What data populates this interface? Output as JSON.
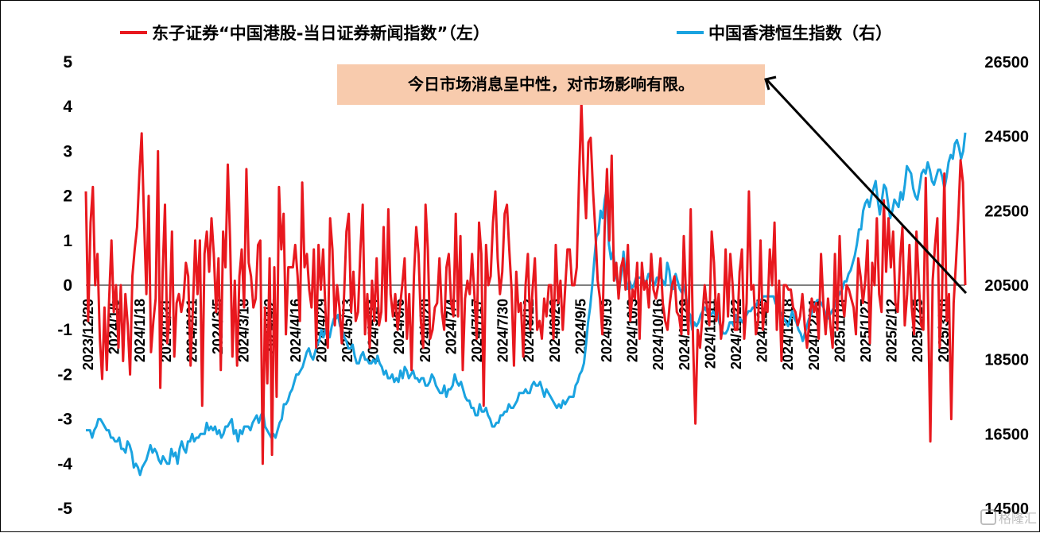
{
  "chart_data": {
    "type": "line",
    "series": [
      {
        "name": "东子证券“中国港股-当日证券新闻指数”（左）",
        "axis": "left",
        "color": "#e8181e",
        "values": [
          2.1,
          -0.8,
          1.4,
          2.2,
          0.0,
          0.7,
          -1.2,
          -2.1,
          -0.5,
          -1.9,
          -0.3,
          1.0,
          -0.6,
          0.0,
          -1.4,
          0.0,
          -1.7,
          -0.2,
          -0.9,
          -2.0,
          0.2,
          0.8,
          1.3,
          2.5,
          3.4,
          1.5,
          -0.2,
          2.0,
          -1.5,
          -0.8,
          -0.3,
          3.0,
          -2.3,
          0.3,
          1.8,
          -1.3,
          -0.7,
          1.2,
          -1.6,
          -0.4,
          -0.2,
          -0.6,
          -0.3,
          0.5,
          0.2,
          -1.8,
          -0.5,
          1.0,
          -0.2,
          1.0,
          -2.7,
          0.7,
          1.2,
          0.3,
          1.5,
          0.7,
          -0.6,
          0.6,
          -1.9,
          1.2,
          0.4,
          2.7,
          1.0,
          -1.6,
          0.1,
          -1.8,
          0.2,
          0.8,
          -0.5,
          2.6,
          0.5,
          0.2,
          -0.5,
          -0.3,
          0.9,
          1.0,
          -4.0,
          -0.5,
          -2.2,
          0.6,
          -3.8,
          0.4,
          -2.5,
          2.2,
          0.8,
          1.6,
          -1.1,
          0.4,
          0.4,
          0.4,
          0.9,
          0.2,
          -0.8,
          2.3,
          0.4,
          0.7,
          -0.1,
          -0.5,
          0.8,
          -1.4,
          0.9,
          -0.1,
          0.8,
          -0.6,
          -1.4,
          1.5,
          0.8,
          -0.9,
          0.0,
          -0.5,
          -1.3,
          -0.2,
          1.2,
          1.6,
          -0.6,
          0.3,
          -0.8,
          -0.6,
          0.8,
          1.8,
          -1.1,
          -0.2,
          -1.4,
          0.1,
          -0.8,
          0.6,
          -0.9,
          -0.6,
          1.3,
          -0.8,
          1.7,
          -0.2,
          -0.7,
          -0.2,
          -1.0,
          -0.5,
          0.0,
          0.6,
          -1.2,
          -0.2,
          -1.9,
          0.2,
          1.3,
          0.7,
          -0.8,
          -1.4,
          1.8,
          0.8,
          -1.2,
          -1.0,
          -0.5,
          -0.4,
          0.6,
          -0.6,
          -1.0,
          0.4,
          0.7,
          -0.4,
          -0.7,
          1.6,
          -0.7,
          1.1,
          -1.9,
          -0.3,
          0.1,
          -0.2,
          0.7,
          -0.2,
          -1.2,
          1.4,
          0.7,
          -2.7,
          0.9,
          0.0,
          0.2,
          1.4,
          2.1,
          0.6,
          -0.2,
          0.3,
          1.6,
          1.8,
          0.8,
          -0.1,
          -1.8,
          0.3,
          -0.6,
          -0.4,
          -1.6,
          0.0,
          0.7,
          -1.0,
          -0.1,
          0.6,
          -1.0,
          -0.8,
          -1.2,
          -0.3,
          -0.7,
          0.0,
          0.0,
          -1.2,
          0.9,
          -0.4,
          0.1,
          -1.0,
          -0.1,
          0.8,
          0.8,
          0.0,
          0.0,
          0.4,
          2.4,
          4.1,
          2.5,
          1.5,
          3.2,
          3.3,
          2.1,
          1.2,
          0.1,
          -0.3,
          -1.1,
          1.3,
          2.6,
          1.0,
          2.9,
          0.1,
          0.5,
          -0.3,
          0.4,
          0.6,
          -0.1,
          0.9,
          -0.8,
          -0.1,
          -0.3,
          0.5,
          -1.2,
          0.5,
          -0.1,
          0.1,
          -0.5,
          0.7,
          -0.1,
          -0.3,
          0.0,
          0.6,
          -0.4,
          -0.8,
          -1.0,
          -0.4,
          0.0,
          0.2,
          -0.6,
          -0.7,
          -1.1,
          1.1,
          -0.3,
          -1.1,
          1.7,
          -1.3,
          -3.1,
          -1.0,
          -1.4,
          -0.7,
          0.0,
          -0.5,
          -0.9,
          1.2,
          0.5,
          -0.8,
          -0.2,
          -1.2,
          -0.8,
          0.8,
          -0.7,
          0.7,
          0.0,
          -1.0,
          -1.0,
          0.3,
          0.8,
          -1.2,
          -0.4,
          2.1,
          -0.1,
          0.0,
          -1.1,
          -0.8,
          1.0,
          -1.0,
          -0.4,
          -0.6,
          0.8,
          0.0,
          1.4,
          -1.0,
          0.1,
          -1.7,
          0.0,
          0.0,
          -0.1,
          -0.1,
          -0.5,
          -0.6,
          -0.9,
          -0.7,
          -0.2,
          -0.9,
          -1.4,
          -0.8,
          -0.3,
          -0.6,
          -0.4,
          -1.2,
          0.7,
          -0.4,
          -1.1,
          -0.3,
          -0.9,
          -1.4,
          0.7,
          -1.0,
          1.1,
          -0.3,
          -0.7,
          0.0,
          -0.1,
          -0.3,
          -0.5,
          -1.1,
          0.6,
          0.2,
          -0.4,
          0.1,
          1.0,
          -1.3,
          0.5,
          0.0,
          1.5,
          -0.2,
          -0.6,
          1.9,
          0.3,
          1.5,
          0.4,
          1.2,
          -0.4,
          -0.6,
          0.6,
          1.3,
          -0.9,
          -0.2,
          0.9,
          -0.5,
          -1.1,
          1.2,
          0.1,
          -0.9,
          -1.0,
          2.4,
          -0.4,
          -3.5,
          0.1,
          0.9,
          1.5,
          -1.4,
          -0.3,
          2.5,
          -0.8,
          -0.2,
          -3.0,
          -0.4,
          0.5,
          1.5,
          2.8,
          2.3,
          0.0
        ]
      },
      {
        "name": "中国香港恒生指数（右）",
        "axis": "right",
        "color": "#1aa3e0",
        "values": [
          16600,
          16600,
          16600,
          16400,
          16600,
          16700,
          16900,
          16900,
          16800,
          16700,
          16600,
          16600,
          16400,
          16400,
          16300,
          16300,
          16400,
          16100,
          16100,
          16000,
          16300,
          16200,
          16000,
          15600,
          15700,
          15600,
          15400,
          15600,
          15700,
          15800,
          16000,
          16200,
          16000,
          16100,
          16000,
          15800,
          15700,
          15900,
          15800,
          15700,
          15700,
          16100,
          15900,
          16000,
          15700,
          16100,
          16300,
          16100,
          16000,
          16300,
          16300,
          16500,
          16300,
          16400,
          16400,
          16500,
          16500,
          16500,
          16800,
          16600,
          16700,
          16600,
          16700,
          16500,
          16600,
          16400,
          16500,
          16700,
          16700,
          16800,
          16900,
          16500,
          16600,
          16300,
          16600,
          16500,
          16700,
          16700,
          16700,
          16600,
          16800,
          16900,
          17000,
          16800,
          17000,
          17100,
          16700,
          16600,
          16500,
          16400,
          16500,
          16400,
          16600,
          16800,
          16900,
          17300,
          17300,
          17400,
          17600,
          17700,
          17900,
          18100,
          18100,
          18200,
          18300,
          18500,
          18700,
          18800,
          18600,
          18500,
          18700,
          18900,
          19000,
          19300,
          19100,
          19300,
          19100,
          19100,
          19400,
          19600,
          19600,
          19700,
          19400,
          19300,
          19100,
          19000,
          18800,
          18800,
          18900,
          18600,
          18400,
          18400,
          18600,
          18700,
          18500,
          18500,
          18400,
          18400,
          18500,
          18400,
          18600,
          18400,
          18300,
          18100,
          18200,
          18000,
          18000,
          18100,
          17900,
          18000,
          17900,
          18200,
          18000,
          18300,
          18200,
          18000,
          18100,
          18200,
          18000,
          18000,
          17900,
          18000,
          18000,
          17800,
          17800,
          17900,
          18100,
          18000,
          17800,
          17700,
          17600,
          17600,
          17800,
          17500,
          17700,
          17700,
          17800,
          18100,
          17900,
          17800,
          17900,
          17700,
          17500,
          17400,
          17400,
          17200,
          17200,
          17000,
          17000,
          17300,
          17100,
          17100,
          17200,
          17000,
          16900,
          16700,
          16700,
          16800,
          16800,
          17000,
          17000,
          17100,
          17100,
          17300,
          17200,
          17200,
          17300,
          17400,
          17600,
          17600,
          17600,
          17700,
          17600,
          17600,
          17800,
          17900,
          17800,
          17800,
          17900,
          17700,
          17500,
          17700,
          17600,
          17500,
          17400,
          17300,
          17200,
          17300,
          17200,
          17400,
          17300,
          17400,
          17500,
          17500,
          17500,
          17800,
          17900,
          18100,
          18200,
          18400,
          18900,
          19500,
          19900,
          20500,
          21200,
          21800,
          21900,
          22500,
          22300,
          22800,
          23100,
          21600,
          21200,
          21400,
          20900,
          20600,
          20400,
          20800,
          21400,
          20700,
          20400,
          20600,
          20400,
          20500,
          20700,
          20700,
          20700,
          20700,
          20600,
          20600,
          20800,
          20700,
          20600,
          20500,
          20700,
          20700,
          20700,
          20600,
          20500,
          21100,
          20900,
          20400,
          20400,
          20800,
          20600,
          20400,
          20300,
          20500,
          20200,
          19800,
          19700,
          19300,
          19500,
          19400,
          19500,
          19700,
          19800,
          19900,
          19800,
          19700,
          19700,
          19800,
          19700,
          19800,
          19500,
          19300,
          19200,
          19200,
          19300,
          19500,
          19500,
          19400,
          19700,
          19500,
          19600,
          19500,
          19600,
          19700,
          19800,
          19800,
          19900,
          19900,
          20000,
          20100,
          20100,
          20200,
          20200,
          20200,
          20200,
          20200,
          20200,
          20000,
          20000,
          19800,
          19700,
          19600,
          19500,
          19400,
          19600,
          19800,
          19600,
          19500,
          19300,
          19200,
          19000,
          19200,
          19400,
          19600,
          19700,
          19900,
          20000,
          20100,
          20100,
          20000,
          19900,
          19700,
          19600,
          19700,
          19800,
          19900,
          20100,
          20200,
          20300,
          20400,
          20600,
          20600,
          20800,
          20900,
          21100,
          21300,
          21600,
          22000,
          22000,
          22500,
          22700,
          22800,
          22600,
          22900,
          23100,
          23300,
          22800,
          22400,
          22800,
          23200,
          23100,
          22700,
          22300,
          22500,
          22800,
          22700,
          22600,
          23000,
          22800,
          23200,
          23700,
          23600,
          23500,
          23100,
          22900,
          22800,
          23100,
          23500,
          23600,
          23500,
          23800,
          23600,
          23300,
          23200,
          23400,
          23600,
          23600,
          23400,
          23100,
          23400,
          23800,
          24000,
          23900,
          24300,
          24400,
          24200,
          23900,
          24100,
          24600
        ]
      }
    ],
    "x_tick_labels": [
      "2023/12/20",
      "2024/1/5",
      "2024/1/18",
      "2024/1/31",
      "2024/2/21",
      "2024/3/5",
      "2024/3/18",
      "2024/4/2",
      "2024/4/16",
      "2024/4/29",
      "2024/5/13",
      "2024/5/24",
      "2024/6/6",
      "2024/6/20",
      "2024/7/4",
      "2024/7/17",
      "2024/7/30",
      "2024/8/12",
      "2024/8/23",
      "2024/9/5",
      "2024/9/19",
      "2024/10/3",
      "2024/10/16",
      "2024/10/29",
      "2024/11/11",
      "2024/11/22",
      "2024/12/5",
      "2024/12/18",
      "2024/12/31",
      "2025/1/14",
      "2025/1/27",
      "2025/2/12",
      "2025/2/25",
      "2025/3/10"
    ],
    "y_left": {
      "ticks": [
        5,
        4,
        3,
        2,
        1,
        0,
        -1,
        -2,
        -3,
        -4,
        -5
      ],
      "ylim": [
        -5,
        5
      ]
    },
    "y_right": {
      "ticks": [
        26500,
        24500,
        22500,
        20500,
        18500,
        16500,
        14500
      ],
      "ylim": [
        14500,
        26500
      ]
    },
    "legend_position": "top",
    "grid": false,
    "annotation": "今日市场消息呈中性，对市场影响有限。",
    "watermark": "格隆汇"
  }
}
